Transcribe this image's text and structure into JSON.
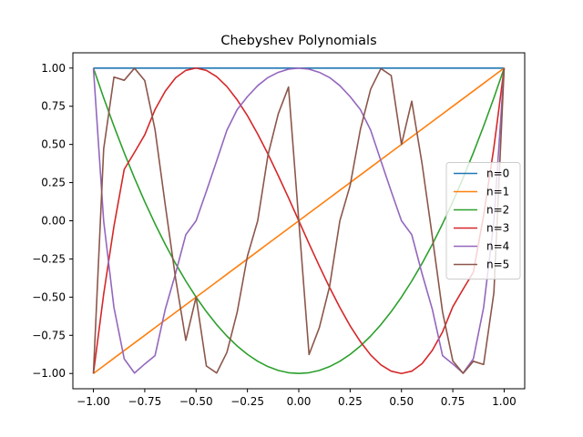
{
  "chart_data": {
    "type": "line",
    "title": "Chebyshev Polynomials",
    "xlabel": "",
    "ylabel": "",
    "xlim": [
      -1.1,
      1.1
    ],
    "ylim": [
      -1.1,
      1.1
    ],
    "x_ticks": [
      -1.0,
      -0.75,
      -0.5,
      -0.25,
      0.0,
      0.25,
      0.5,
      0.75,
      1.0
    ],
    "x_tick_labels": [
      "−1.00",
      "−0.75",
      "−0.50",
      "−0.25",
      "0.00",
      "0.25",
      "0.50",
      "0.75",
      "1.00"
    ],
    "y_ticks": [
      -1.0,
      -0.75,
      -0.5,
      -0.25,
      0.0,
      0.25,
      0.5,
      0.75,
      1.0
    ],
    "y_tick_labels": [
      "−1.00",
      "−0.75",
      "−0.50",
      "−0.25",
      "0.00",
      "0.25",
      "0.50",
      "0.75",
      "1.00"
    ],
    "grid": false,
    "legend_position": "center-right",
    "x": [
      -1.0,
      -0.95,
      -0.9,
      -0.85,
      -0.8,
      -0.75,
      -0.7,
      -0.65,
      -0.6,
      -0.55,
      -0.5,
      -0.45,
      -0.4,
      -0.35,
      -0.3,
      -0.25,
      -0.2,
      -0.15,
      -0.1,
      -0.05,
      0.0,
      0.05,
      0.1,
      0.15,
      0.2,
      0.25,
      0.3,
      0.35,
      0.4,
      0.45,
      0.5,
      0.55,
      0.6,
      0.65,
      0.7,
      0.75,
      0.8,
      0.85,
      0.9,
      0.95,
      1.0
    ],
    "series": [
      {
        "name": "n=0",
        "color": "#1f77b4",
        "values": [
          1,
          1,
          1,
          1,
          1,
          1,
          1,
          1,
          1,
          1,
          1,
          1,
          1,
          1,
          1,
          1,
          1,
          1,
          1,
          1,
          1,
          1,
          1,
          1,
          1,
          1,
          1,
          1,
          1,
          1,
          1,
          1,
          1,
          1,
          1,
          1,
          1,
          1,
          1,
          1,
          1
        ]
      },
      {
        "name": "n=1",
        "color": "#ff7f0e",
        "values": [
          -1.0,
          -0.95,
          -0.9,
          -0.85,
          -0.8,
          -0.75,
          -0.7,
          -0.65,
          -0.6,
          -0.55,
          -0.5,
          -0.45,
          -0.4,
          -0.35,
          -0.3,
          -0.25,
          -0.2,
          -0.15,
          -0.1,
          -0.05,
          0.0,
          0.05,
          0.1,
          0.15,
          0.2,
          0.25,
          0.3,
          0.35,
          0.4,
          0.45,
          0.5,
          0.55,
          0.6,
          0.65,
          0.7,
          0.75,
          0.8,
          0.85,
          0.9,
          0.95,
          1.0
        ]
      },
      {
        "name": "n=2",
        "color": "#2ca02c",
        "values": [
          1.0,
          0.805,
          0.62,
          0.445,
          0.28,
          0.125,
          -0.02,
          -0.155,
          -0.28,
          -0.395,
          -0.5,
          -0.595,
          -0.68,
          -0.755,
          -0.82,
          -0.875,
          -0.92,
          -0.955,
          -0.98,
          -0.995,
          -1.0,
          -0.995,
          -0.98,
          -0.955,
          -0.92,
          -0.875,
          -0.82,
          -0.755,
          -0.68,
          -0.595,
          -0.5,
          -0.395,
          -0.28,
          -0.155,
          -0.02,
          0.125,
          0.28,
          0.445,
          0.62,
          0.805,
          1.0
        ]
      },
      {
        "name": "n=3",
        "color": "#d62728",
        "values": [
          -1.0,
          -0.48,
          -0.036,
          0.337,
          0.448,
          0.563,
          0.728,
          0.849,
          0.936,
          0.985,
          1.0,
          0.985,
          0.944,
          0.879,
          0.792,
          0.688,
          0.568,
          0.437,
          0.296,
          0.15,
          0.0,
          -0.15,
          -0.296,
          -0.437,
          -0.568,
          -0.688,
          -0.792,
          -0.879,
          -0.944,
          -0.985,
          -1.0,
          -0.985,
          -0.936,
          -0.849,
          -0.728,
          -0.563,
          -0.448,
          -0.337,
          0.036,
          0.48,
          1.0
        ]
      },
      {
        "name": "n=4",
        "color": "#9467bd",
        "values": [
          1.0,
          -0.003,
          -0.568,
          -0.904,
          -0.997,
          -0.938,
          -0.883,
          -0.579,
          -0.345,
          -0.091,
          0.0,
          0.193,
          0.392,
          0.593,
          0.728,
          0.813,
          0.885,
          0.938,
          0.972,
          0.993,
          1.0,
          0.993,
          0.972,
          0.938,
          0.885,
          0.813,
          0.728,
          0.593,
          0.392,
          0.193,
          0.0,
          -0.091,
          -0.345,
          -0.579,
          -0.883,
          -0.938,
          -0.997,
          -0.904,
          -0.568,
          -0.003,
          1.0
        ]
      },
      {
        "name": "n=5",
        "color": "#8c564b",
        "values": [
          -1.0,
          0.471,
          0.941,
          0.92,
          0.999,
          0.918,
          0.597,
          0.102,
          -0.376,
          -0.783,
          -0.5,
          -0.951,
          -0.997,
          -0.862,
          -0.599,
          -0.231,
          0.0,
          0.43,
          0.7,
          0.876,
          0.0,
          -0.876,
          -0.7,
          -0.43,
          0.0,
          0.231,
          0.599,
          0.862,
          0.997,
          0.951,
          0.5,
          0.783,
          0.376,
          -0.102,
          -0.597,
          -0.918,
          -0.999,
          -0.92,
          -0.941,
          -0.471,
          1.0
        ]
      }
    ]
  }
}
